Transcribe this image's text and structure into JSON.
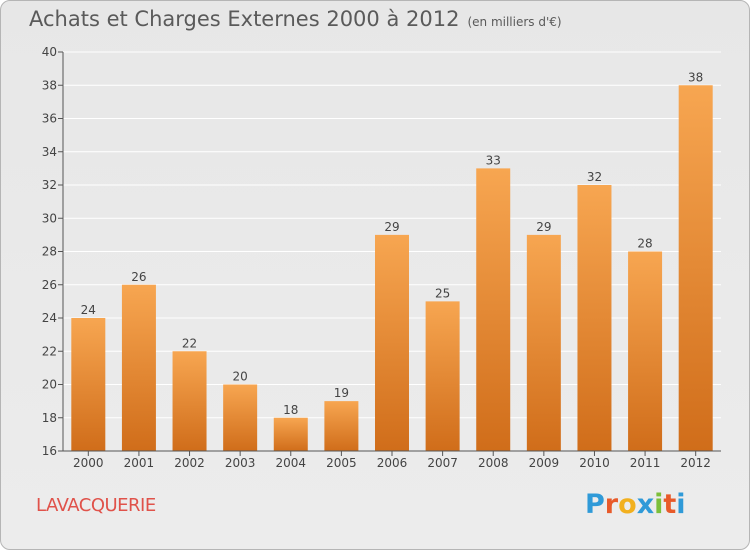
{
  "header": {
    "title": "Achats et Charges Externes 2000 à 2012",
    "subtitle": "(en milliers d'€)"
  },
  "footer": {
    "commune": "LAVACQUERIE",
    "brand": "Proxiti",
    "brand_colors": [
      "#2f9ad8",
      "#e85a2a",
      "#f2b01e",
      "#2f9ad8",
      "#7cbf3a",
      "#e85a2a",
      "#2f9ad8"
    ]
  },
  "colors": {
    "bar_top": "#f7a651",
    "bar_bottom": "#d06d1a",
    "grid": "#ffffff",
    "axis": "#555555",
    "text": "#444444"
  },
  "chart_data": {
    "type": "bar",
    "categories": [
      "2000",
      "2001",
      "2002",
      "2003",
      "2004",
      "2005",
      "2006",
      "2007",
      "2008",
      "2009",
      "2010",
      "2011",
      "2012"
    ],
    "values": [
      24,
      26,
      22,
      20,
      18,
      19,
      29,
      25,
      33,
      29,
      32,
      28,
      38
    ],
    "title": "Achats et Charges Externes 2000 à 2012",
    "subtitle": "(en milliers d'€)",
    "xlabel": "",
    "ylabel": "",
    "ylim": [
      16,
      40
    ],
    "yticks": [
      16,
      18,
      20,
      22,
      24,
      26,
      28,
      30,
      32,
      34,
      36,
      38,
      40
    ],
    "grid": true,
    "data_labels": true
  }
}
